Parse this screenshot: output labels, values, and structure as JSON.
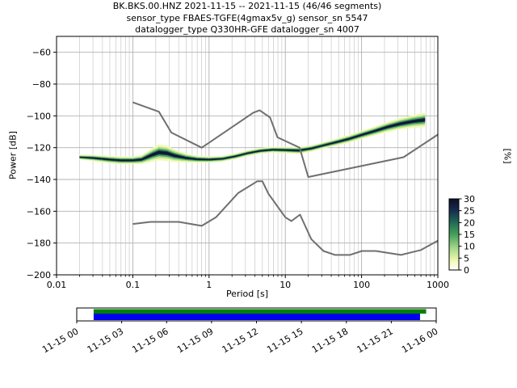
{
  "chart_data": {
    "type": "heatmap",
    "titles": {
      "line1": "BK.BKS.00.HNZ   2021-11-15 -- 2021-11-15  (46/46 segments)",
      "line2": "sensor_type FBAES-TGFE(4gmax5v_g) sensor_sn 5547",
      "line3": "datalogger_type Q330HR-GFE datalogger_sn 4007"
    },
    "xlabel": "Period [s]",
    "ylabel": "Power [dB]",
    "colorbar_label": "[%]",
    "x_scale": "log",
    "xlim": [
      0.01,
      1000
    ],
    "ylim": [
      -200,
      -50
    ],
    "x_tick_values": [
      0.01,
      0.1,
      1,
      10,
      100,
      1000
    ],
    "x_tick_labels": [
      "0.01",
      "0.1",
      "1",
      "10",
      "100",
      "1000"
    ],
    "y_tick_values": [
      -60,
      -80,
      -100,
      -120,
      -140,
      -160,
      -180,
      -200
    ],
    "y_tick_labels": [
      "−60",
      "−80",
      "−100",
      "−120",
      "−140",
      "−160",
      "−180",
      "−200"
    ],
    "grid": true,
    "grid_colors": {
      "major": "#b0b0b0",
      "minor": "#c9c9c9"
    },
    "colorbar": {
      "range": [
        0,
        30
      ],
      "tick_values": [
        0,
        5,
        10,
        15,
        20,
        25,
        30
      ],
      "tick_labels": [
        "0",
        "5",
        "10",
        "15",
        "20",
        "25",
        "30"
      ],
      "gradient": [
        {
          "offset": 0.0,
          "color": "#ffffff"
        },
        {
          "offset": 0.12,
          "color": "#f3fab8"
        },
        {
          "offset": 0.3,
          "color": "#a8d98b"
        },
        {
          "offset": 0.5,
          "color": "#44a059"
        },
        {
          "offset": 0.68,
          "color": "#1f6656"
        },
        {
          "offset": 0.85,
          "color": "#17294d"
        },
        {
          "offset": 1.0,
          "color": "#0b1026"
        }
      ]
    },
    "noise_models": {
      "color": "#6f6f6f",
      "high": {
        "periods": [
          0.1,
          0.22,
          0.32,
          0.8,
          3.8,
          4.6,
          6.3,
          7.9,
          15.4,
          20.0,
          354.8,
          1000
        ],
        "powers": [
          -91.5,
          -97.4,
          -110.5,
          -120.0,
          -98.0,
          -96.5,
          -101.0,
          -113.5,
          -120.0,
          -138.5,
          -126.0,
          -111.8
        ]
      },
      "low": {
        "periods": [
          0.1,
          0.17,
          0.4,
          0.8,
          1.24,
          2.4,
          4.3,
          5.0,
          6.0,
          10.0,
          12.0,
          15.6,
          21.9,
          31.6,
          45.0,
          70.0,
          101.0,
          154.0,
          328.0,
          600.0,
          1000
        ],
        "powers": [
          -168.0,
          -166.7,
          -166.7,
          -169.2,
          -163.7,
          -148.6,
          -141.1,
          -141.1,
          -149.0,
          -163.8,
          -166.2,
          -162.1,
          -177.5,
          -185.0,
          -187.5,
          -187.5,
          -185.0,
          -185.0,
          -187.5,
          -184.4,
          -178.5
        ]
      }
    },
    "ppsd": {
      "periods": [
        0.02,
        0.03,
        0.05,
        0.07,
        0.1,
        0.13,
        0.18,
        0.22,
        0.28,
        0.35,
        0.5,
        0.7,
        1.0,
        1.5,
        2.2,
        3.2,
        4.7,
        6.8,
        10,
        15,
        22,
        32,
        47,
        68,
        100,
        150,
        220,
        320,
        470,
        680
      ],
      "mode_powers": [
        -126,
        -126.5,
        -127.5,
        -128,
        -128,
        -127.5,
        -124.5,
        -123,
        -123.5,
        -125,
        -126.5,
        -127.3,
        -127.5,
        -127,
        -125.5,
        -123.5,
        -122,
        -121.3,
        -121.5,
        -121.8,
        -120.5,
        -118.5,
        -116.5,
        -114.5,
        -112,
        -109.5,
        -107,
        -105,
        -103.5,
        -102.5
      ],
      "halfwidths_db": [
        1.5,
        2.0,
        2.3,
        2.4,
        2.4,
        2.8,
        4.2,
        5.0,
        4.8,
        4.0,
        2.8,
        2.2,
        2.0,
        1.8,
        1.8,
        1.8,
        1.8,
        1.8,
        2.0,
        2.2,
        2.0,
        2.0,
        2.2,
        2.4,
        2.6,
        2.8,
        3.2,
        3.6,
        4.0,
        4.5
      ],
      "band_levels": [
        {
          "scale": 1.0,
          "color": "#f1f9b4"
        },
        {
          "scale": 0.72,
          "color": "#b4df8e"
        },
        {
          "scale": 0.48,
          "color": "#46a75a"
        },
        {
          "scale": 0.27,
          "color": "#1d3050"
        },
        {
          "scale": 0.13,
          "color": "#0d1630"
        }
      ]
    }
  },
  "timeline": {
    "labels": [
      "11-15 00",
      "11-15 03",
      "11-15 06",
      "11-15 09",
      "11-15 12",
      "11-15 15",
      "11-15 18",
      "11-15 21",
      "11-16 00"
    ],
    "green_color": "#008000",
    "blue_color": "#0000ee",
    "green_span": [
      0.047,
      0.972
    ],
    "blue_span": [
      0.047,
      0.955
    ]
  }
}
